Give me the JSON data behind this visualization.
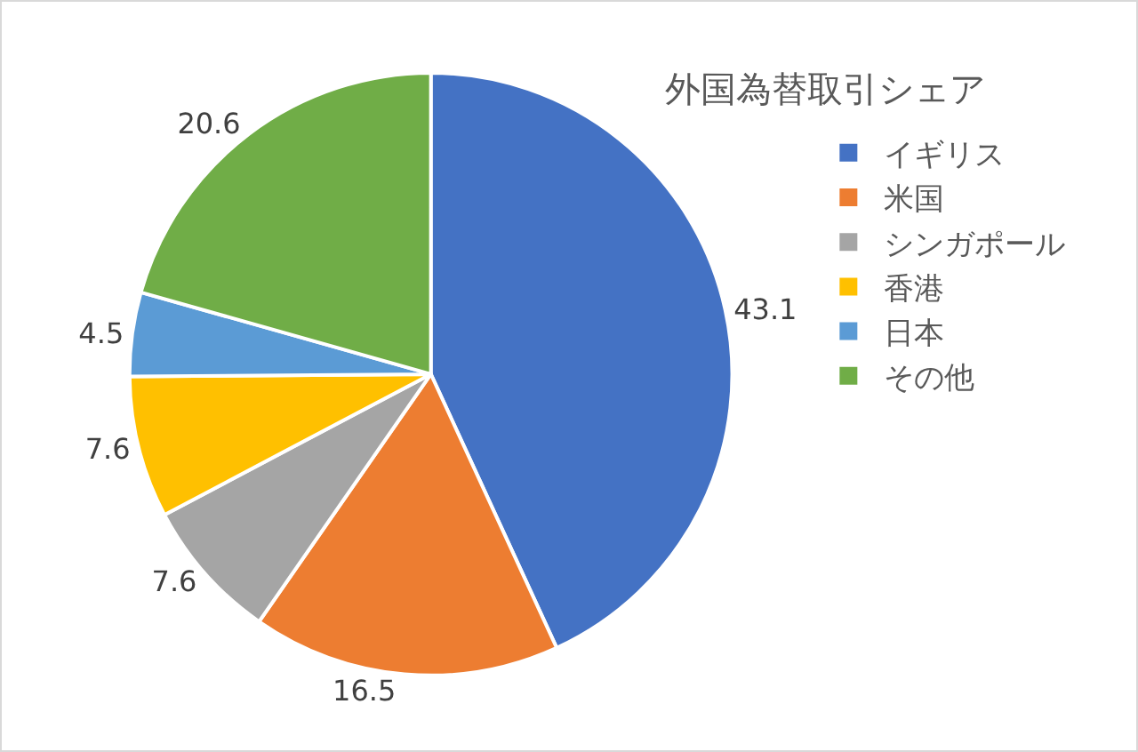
{
  "chart_data": {
    "type": "pie",
    "title": "外国為替取引シェア",
    "categories": [
      "イギリス",
      "米国",
      "シンガポール",
      "香港",
      "日本",
      "その他"
    ],
    "values": [
      43.1,
      16.5,
      7.6,
      7.6,
      4.5,
      20.6
    ],
    "colors": [
      "#4472c4",
      "#ed7d31",
      "#a5a5a5",
      "#ffc000",
      "#5b9bd5",
      "#70ad47"
    ],
    "data_labels": true,
    "legend": "right"
  }
}
